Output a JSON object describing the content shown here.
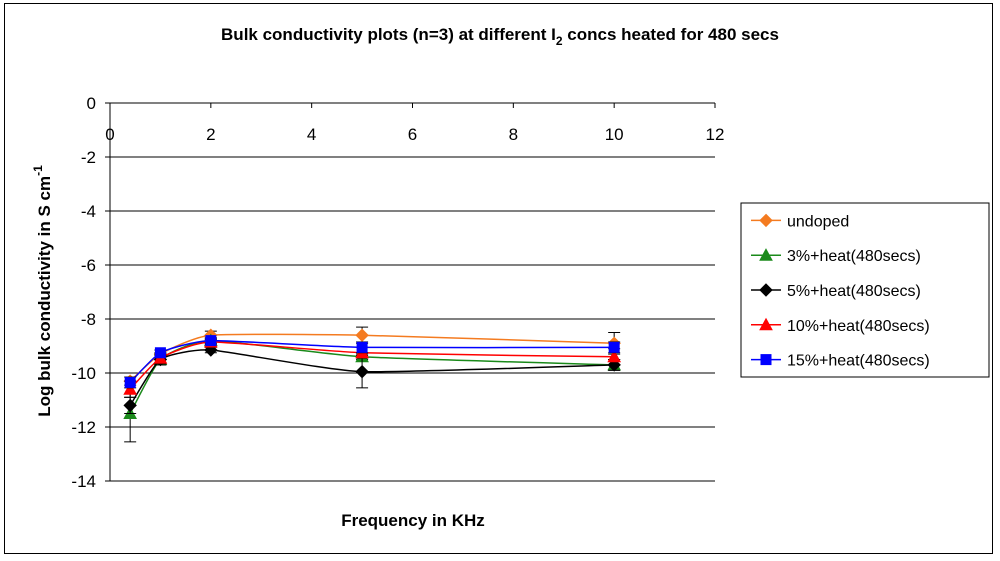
{
  "chart_data": {
    "type": "line",
    "title": {
      "prefix": "Bulk conductivity plots (n=3) at different I",
      "subscript": "2",
      "suffix": " concs heated for 480 secs"
    },
    "xlabel": "Frequency in KHz",
    "ylabel": {
      "main": "Log bulk conductivity in S cm",
      "superscript": "-1"
    },
    "xlim": [
      0,
      12
    ],
    "ylim": [
      -14,
      0
    ],
    "xticks": [
      "0",
      "2",
      "4",
      "6",
      "8",
      "10",
      "12"
    ],
    "yticks": [
      "0",
      "-2",
      "-4",
      "-6",
      "-8",
      "-10",
      "-12",
      "-14"
    ],
    "grid": "horizontal",
    "legend_position": "right",
    "x": [
      0.4,
      1,
      2,
      5,
      10
    ],
    "series": [
      {
        "name": "undoped",
        "color": "#f47b20",
        "marker": "diamond",
        "values": [
          -10.3,
          -9.3,
          -8.6,
          -8.6,
          -8.9
        ],
        "errors": [
          0,
          0,
          0.15,
          0.3,
          0.4
        ]
      },
      {
        "name": "3%+heat(480secs)",
        "color": "#1a8a1a",
        "marker": "triangle",
        "values": [
          -11.5,
          -9.5,
          -8.8,
          -9.4,
          -9.7
        ],
        "errors": [
          1.05,
          0.2,
          0.1,
          0.1,
          0.2
        ]
      },
      {
        "name": "5%+heat(480secs)",
        "color": "#000000",
        "marker": "diamond",
        "values": [
          -11.2,
          -9.5,
          -9.15,
          -9.95,
          -9.7
        ],
        "errors": [
          0.3,
          0.2,
          0.1,
          0.6,
          0.2
        ]
      },
      {
        "name": "10%+heat(480secs)",
        "color": "#ff0000",
        "marker": "triangle",
        "values": [
          -10.6,
          -9.45,
          -8.85,
          -9.25,
          -9.4
        ],
        "errors": [
          0.3,
          0.2,
          0.1,
          0.2,
          0.3
        ]
      },
      {
        "name": "15%+heat(480secs)",
        "color": "#0000ff",
        "marker": "square",
        "values": [
          -10.35,
          -9.25,
          -8.8,
          -9.05,
          -9.05
        ],
        "errors": [
          0.2,
          0.1,
          0.1,
          0.2,
          0.2
        ]
      }
    ]
  }
}
